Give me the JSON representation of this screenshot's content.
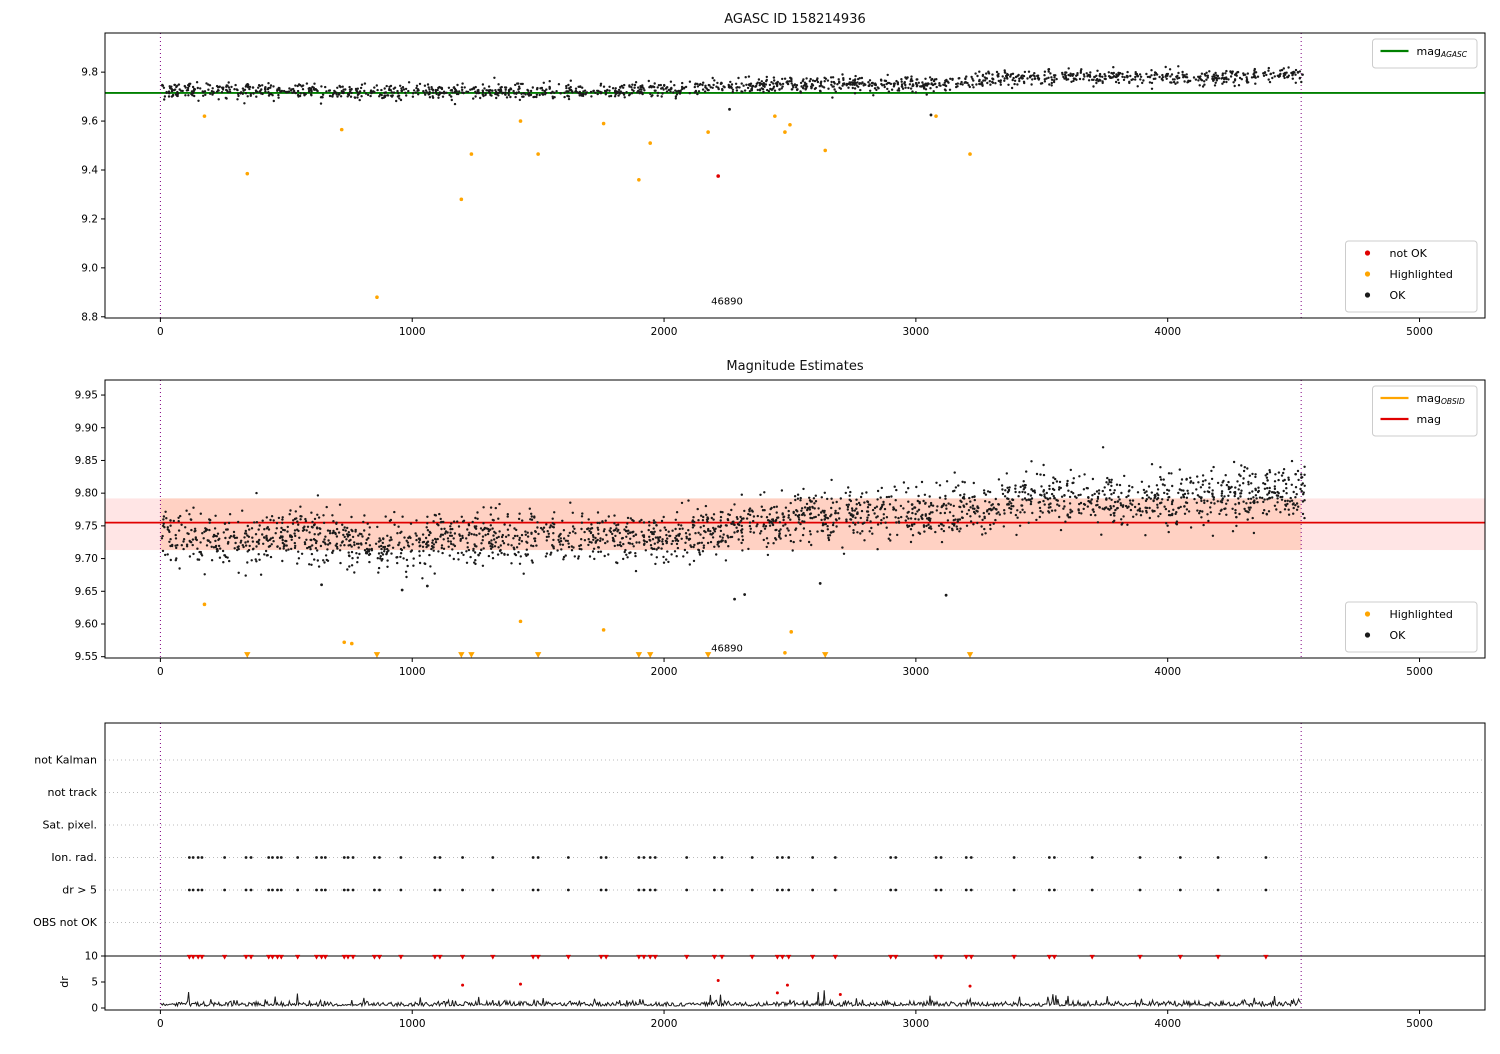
{
  "palette": {
    "green": "#008000",
    "red": "#e00000",
    "orange": "#ffa500",
    "black": "#1a1a1a",
    "purple": "#800080",
    "axis": "#000000",
    "grid_dotted": "#bbbbbb",
    "legend_border": "#cccccc",
    "band_outer": "rgba(255,0,0,0.10)",
    "band_inner": "rgba(255,130,60,0.20)"
  },
  "chart_data": [
    {
      "type": "scatter",
      "name": "agasc-mag-plot",
      "title": "AGASC ID 158214936",
      "xlim": [
        -220,
        5260
      ],
      "ylim": [
        8.795,
        9.96
      ],
      "x_ticks": [
        0,
        1000,
        2000,
        3000,
        4000,
        5000
      ],
      "y_ticks": [
        8.8,
        9.0,
        9.2,
        9.4,
        9.6,
        9.8
      ],
      "y_decimals": 1,
      "hlines": [
        {
          "y": 9.715,
          "color": "green",
          "width": 1.8
        }
      ],
      "vlines": [
        0,
        4530
      ],
      "cloud": {
        "n": 1600,
        "seed": 7,
        "x_range": [
          5,
          4555
        ],
        "sigma": 0.016,
        "anchors": [
          [
            0,
            9.722
          ],
          [
            400,
            9.73
          ],
          [
            800,
            9.718
          ],
          [
            1200,
            9.722
          ],
          [
            1600,
            9.722
          ],
          [
            2000,
            9.726
          ],
          [
            2300,
            9.745
          ],
          [
            2700,
            9.75
          ],
          [
            3000,
            9.75
          ],
          [
            3300,
            9.775
          ],
          [
            3600,
            9.78
          ],
          [
            3900,
            9.778
          ],
          [
            4200,
            9.78
          ],
          [
            4530,
            9.79
          ]
        ]
      },
      "outliers": [
        [
          3060,
          9.625
        ],
        [
          2260,
          9.648
        ]
      ],
      "highlighted": [
        [
          175,
          9.62
        ],
        [
          345,
          9.385
        ],
        [
          720,
          9.565
        ],
        [
          860,
          8.88
        ],
        [
          1195,
          9.28
        ],
        [
          1235,
          9.465
        ],
        [
          1430,
          9.6
        ],
        [
          1500,
          9.465
        ],
        [
          1760,
          9.59
        ],
        [
          1900,
          9.36
        ],
        [
          1945,
          9.51
        ],
        [
          2175,
          9.555
        ],
        [
          2440,
          9.62
        ],
        [
          2480,
          9.555
        ],
        [
          2500,
          9.585
        ],
        [
          2640,
          9.48
        ],
        [
          3080,
          9.62
        ],
        [
          3215,
          9.465
        ]
      ],
      "not_ok": [
        [
          2215,
          9.375
        ]
      ],
      "annotation": {
        "text": "46890",
        "x": 2250,
        "y": 8.85
      },
      "legends": [
        {
          "anchor": "top-right",
          "entries": [
            {
              "marker": "line",
              "color": "green",
              "label": "mag",
              "sub": "AGASC"
            }
          ]
        },
        {
          "anchor": "bottom-right",
          "entries": [
            {
              "marker": "dot",
              "color": "red",
              "label": "not OK"
            },
            {
              "marker": "dot",
              "color": "orange",
              "label": "Highlighted"
            },
            {
              "marker": "dot",
              "color": "black",
              "label": "OK"
            }
          ]
        }
      ]
    },
    {
      "type": "scatter",
      "name": "magnitude-estimates-plot",
      "title": "Magnitude Estimates",
      "xlim": [
        -220,
        5260
      ],
      "ylim": [
        9.548,
        9.973
      ],
      "x_ticks": [
        0,
        1000,
        2000,
        3000,
        4000,
        5000
      ],
      "y_ticks": [
        9.55,
        9.6,
        9.65,
        9.7,
        9.75,
        9.8,
        9.85,
        9.9,
        9.95
      ],
      "y_decimals": 2,
      "bands": [
        {
          "x0": -220,
          "x1": 5260,
          "y0": 9.713,
          "y1": 9.792,
          "color_key": "band_outer"
        },
        {
          "x0": 0,
          "x1": 4530,
          "y0": 9.713,
          "y1": 9.792,
          "color_key": "band_inner"
        }
      ],
      "hlines": [
        {
          "y": 9.755,
          "color": "red",
          "width": 1.8
        }
      ],
      "vlines": [
        0,
        4530
      ],
      "cloud": {
        "n": 2400,
        "seed": 13,
        "x_range": [
          5,
          4550
        ],
        "sigma": 0.02,
        "anchors": [
          [
            0,
            9.74
          ],
          [
            300,
            9.725
          ],
          [
            600,
            9.735
          ],
          [
            900,
            9.715
          ],
          [
            1100,
            9.73
          ],
          [
            1400,
            9.73
          ],
          [
            1700,
            9.735
          ],
          [
            2000,
            9.73
          ],
          [
            2200,
            9.745
          ],
          [
            2500,
            9.76
          ],
          [
            2800,
            9.765
          ],
          [
            3100,
            9.77
          ],
          [
            3400,
            9.79
          ],
          [
            3700,
            9.795
          ],
          [
            4000,
            9.79
          ],
          [
            4300,
            9.8
          ],
          [
            4530,
            9.8
          ]
        ]
      },
      "outliers": [
        [
          640,
          9.66
        ],
        [
          960,
          9.652
        ],
        [
          1060,
          9.658
        ],
        [
          2280,
          9.638
        ],
        [
          2320,
          9.645
        ],
        [
          2620,
          9.662
        ],
        [
          3120,
          9.644
        ]
      ],
      "highlighted": [
        [
          175,
          9.63
        ],
        [
          730,
          9.572
        ],
        [
          760,
          9.57
        ],
        [
          1430,
          9.604
        ],
        [
          1760,
          9.591
        ],
        [
          2480,
          9.556
        ],
        [
          2505,
          9.588
        ]
      ],
      "triangles": {
        "x": [
          345,
          860,
          1195,
          1235,
          1500,
          1900,
          1945,
          2175,
          2640,
          3215
        ],
        "y": 9.553
      },
      "annotation": {
        "text": "46890",
        "x": 2250,
        "y": 9.558
      },
      "legends": [
        {
          "anchor": "top-right",
          "entries": [
            {
              "marker": "line",
              "color": "orange",
              "label": "mag",
              "sub": "OBSID"
            },
            {
              "marker": "line",
              "color": "red",
              "label": "mag"
            }
          ]
        },
        {
          "anchor": "bottom-right",
          "entries": [
            {
              "marker": "dot",
              "color": "orange",
              "label": "Highlighted"
            },
            {
              "marker": "dot",
              "color": "black",
              "label": "OK"
            }
          ]
        }
      ]
    },
    {
      "type": "flags",
      "name": "flags-and-dr-plot",
      "xlim": [
        -220,
        5260
      ],
      "x_ticks": [
        0,
        1000,
        2000,
        3000,
        4000,
        5000
      ],
      "rows": [
        "not Kalman",
        "not track",
        "Sat. pixel.",
        "Ion. rad.",
        "dr > 5",
        "OBS not OK"
      ],
      "rows_with_points": [
        "Ion. rad.",
        "dr > 5"
      ],
      "flag_x": [
        115,
        130,
        150,
        165,
        255,
        340,
        360,
        430,
        445,
        465,
        480,
        545,
        620,
        640,
        655,
        730,
        745,
        765,
        850,
        870,
        955,
        1090,
        1110,
        1200,
        1320,
        1480,
        1500,
        1620,
        1750,
        1770,
        1900,
        1920,
        1945,
        1965,
        2090,
        2200,
        2230,
        2350,
        2450,
        2470,
        2495,
        2590,
        2680,
        2900,
        2920,
        3080,
        3100,
        3200,
        3220,
        3390,
        3530,
        3550,
        3700,
        3890,
        4050,
        4200,
        4390
      ],
      "vlines": [
        0,
        4530
      ],
      "dr": {
        "label": "dr",
        "ticks": [
          0,
          5,
          10
        ],
        "line_y": 10,
        "red_triangle_y": 10,
        "red_points": [
          [
            1200,
            4.4
          ],
          [
            1430,
            4.6
          ],
          [
            2215,
            5.3
          ],
          [
            2450,
            2.9
          ],
          [
            2490,
            4.4
          ],
          [
            2700,
            2.6
          ],
          [
            3215,
            4.2
          ]
        ],
        "trace": {
          "seed": 11,
          "x_start": 0,
          "x_end": 4530,
          "step": 4,
          "base": 0.35,
          "sigma": 0.5
        }
      }
    }
  ]
}
